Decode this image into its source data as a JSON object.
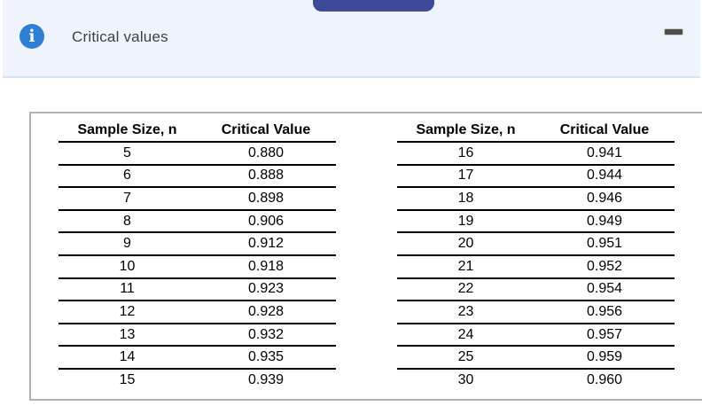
{
  "header": {
    "title": "Critical values",
    "info_icon_glyph": "i"
  },
  "colors": {
    "drag_tab": "#3d4999",
    "info_icon_blue": "#2e7fd6",
    "banner_bg": "#eff3fb",
    "banner_border": "#d5e3f2",
    "panel_border": "#b3b1b1",
    "title_text": "#3c4146",
    "table_rule": "#000000",
    "minimize_dash": "#4d4d4d"
  },
  "tables": [
    {
      "columns": [
        "Sample Size, n",
        "Critical Value"
      ],
      "rows": [
        {
          "n": "5",
          "cv": "0.880"
        },
        {
          "n": "6",
          "cv": "0.888"
        },
        {
          "n": "7",
          "cv": "0.898"
        },
        {
          "n": "8",
          "cv": "0.906"
        },
        {
          "n": "9",
          "cv": "0.912"
        },
        {
          "n": "10",
          "cv": "0.918"
        },
        {
          "n": "11",
          "cv": "0.923"
        },
        {
          "n": "12",
          "cv": "0.928"
        },
        {
          "n": "13",
          "cv": "0.932"
        },
        {
          "n": "14",
          "cv": "0.935"
        },
        {
          "n": "15",
          "cv": "0.939"
        }
      ]
    },
    {
      "columns": [
        "Sample Size, n",
        "Critical Value"
      ],
      "rows": [
        {
          "n": "16",
          "cv": "0.941"
        },
        {
          "n": "17",
          "cv": "0.944"
        },
        {
          "n": "18",
          "cv": "0.946"
        },
        {
          "n": "19",
          "cv": "0.949"
        },
        {
          "n": "20",
          "cv": "0.951"
        },
        {
          "n": "21",
          "cv": "0.952"
        },
        {
          "n": "22",
          "cv": "0.954"
        },
        {
          "n": "23",
          "cv": "0.956"
        },
        {
          "n": "24",
          "cv": "0.957"
        },
        {
          "n": "25",
          "cv": "0.959"
        },
        {
          "n": "30",
          "cv": "0.960"
        }
      ]
    }
  ]
}
